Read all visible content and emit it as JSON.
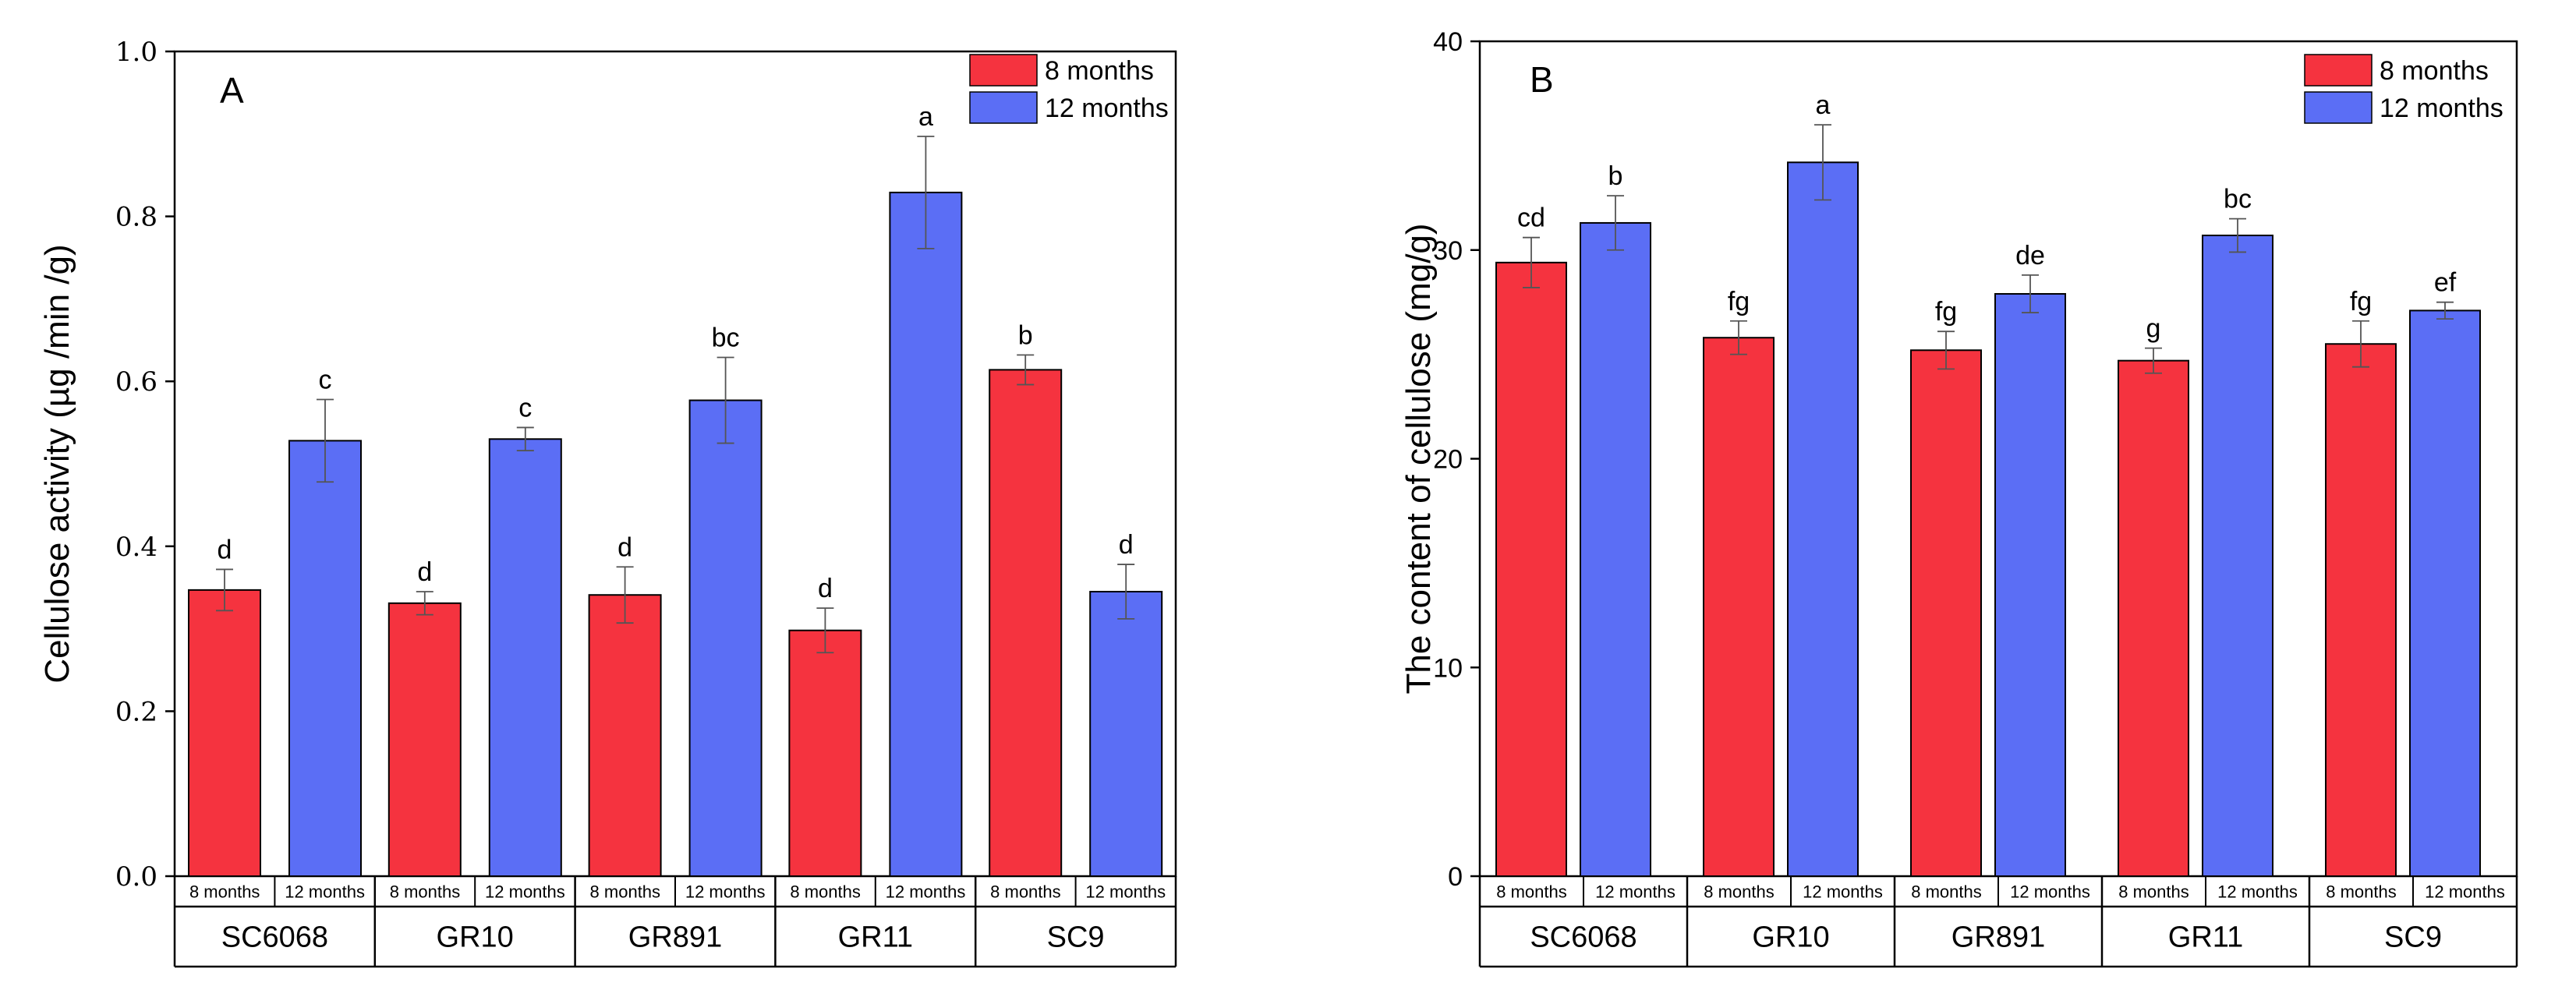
{
  "chart_data": [
    {
      "type": "bar",
      "panel_label": "A",
      "ylabel": "Cellulose activity (µg /min /g)",
      "ylim": [
        0,
        1.0
      ],
      "yticks": [
        "0.0",
        "0.2",
        "0.4",
        "0.6",
        "0.8",
        "1.0"
      ],
      "ytick_values": [
        0,
        0.2,
        0.4,
        0.6,
        0.8,
        1.0
      ],
      "categories": [
        "SC6068",
        "GR10",
        "GR891",
        "GR11",
        "SC9"
      ],
      "sublabels": [
        "8 months",
        "12 months"
      ],
      "legend": [
        "8 months",
        "12 months"
      ],
      "series": [
        {
          "name": "8 months",
          "color": "#f5333f",
          "values": [
            0.347,
            0.331,
            0.341,
            0.298,
            0.614
          ],
          "errors": [
            0.025,
            0.014,
            0.034,
            0.027,
            0.018
          ],
          "letters": [
            "d",
            "d",
            "d",
            "d",
            "b"
          ]
        },
        {
          "name": "12 months",
          "color": "#5b6ef5",
          "values": [
            0.528,
            0.53,
            0.577,
            0.829,
            0.345
          ],
          "errors": [
            0.05,
            0.014,
            0.052,
            0.068,
            0.033
          ],
          "letters": [
            "c",
            "c",
            "bc",
            "a",
            "d"
          ]
        }
      ]
    },
    {
      "type": "bar",
      "panel_label": "B",
      "ylabel": "The content of cellulose (mg/g)",
      "ylim": [
        0,
        40
      ],
      "yticks": [
        "0",
        "10",
        "20",
        "30",
        "40"
      ],
      "ytick_values": [
        0,
        10,
        20,
        30,
        40
      ],
      "categories": [
        "SC6068",
        "GR10",
        "GR891",
        "GR11",
        "SC9"
      ],
      "sublabels": [
        "8 months",
        "12 months"
      ],
      "legend": [
        "8 months",
        "12 months"
      ],
      "series": [
        {
          "name": "8 months",
          "color": "#f5333f",
          "values": [
            29.4,
            25.8,
            25.2,
            24.7,
            25.5
          ],
          "errors": [
            1.2,
            0.8,
            0.9,
            0.6,
            1.1
          ],
          "letters": [
            "cd",
            "fg",
            "fg",
            "g",
            "fg"
          ]
        },
        {
          "name": "12 months",
          "color": "#5b6ef5",
          "values": [
            31.3,
            34.2,
            27.9,
            30.7,
            27.1
          ],
          "errors": [
            1.3,
            1.8,
            0.9,
            0.8,
            0.4
          ],
          "letters": [
            "b",
            "a",
            "de",
            "bc",
            "ef"
          ]
        }
      ]
    }
  ]
}
